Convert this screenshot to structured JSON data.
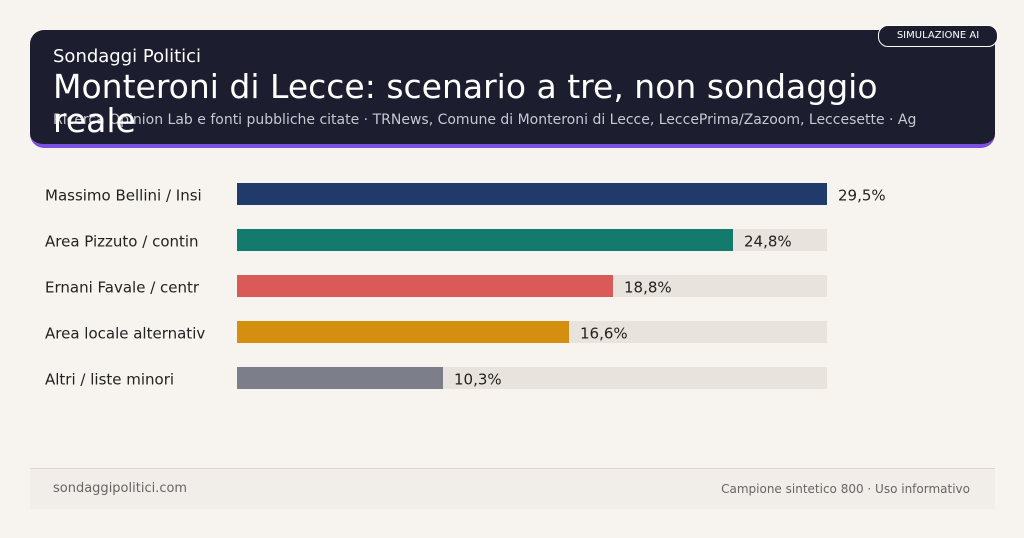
{
  "header": {
    "brand": "Sondaggi Politici",
    "badge": "SIMULAZIONE AI"
  },
  "chart_data": {
    "type": "bar",
    "orientation": "horizontal",
    "title": "Monteroni di Lecce: scenario a tre, non sondaggio reale",
    "subtitle": "Ricerca Opinion Lab e fonti pubbliche citate · TRNews, Comune di Monteroni di Lecce, LeccePrima/Zazoom, Leccesette · Ag",
    "categories": [
      "Massimo Bellini / Insi",
      "Area Pizzuto / contin",
      "Ernani Favale / centr",
      "Area locale alternativ",
      "Altri / liste minori"
    ],
    "values": [
      29.5,
      24.8,
      18.8,
      16.6,
      10.3
    ],
    "value_labels": [
      "29,5%",
      "24,8%",
      "18,8%",
      "16,6%",
      "10,3%"
    ],
    "colors": [
      "#1f3a6b",
      "#157a6e",
      "#d95a57",
      "#d58f10",
      "#7c7f89"
    ]
  },
  "footer": {
    "site": "sondaggipolitici.com",
    "note": "Campione sintetico 800 · Uso informativo"
  }
}
